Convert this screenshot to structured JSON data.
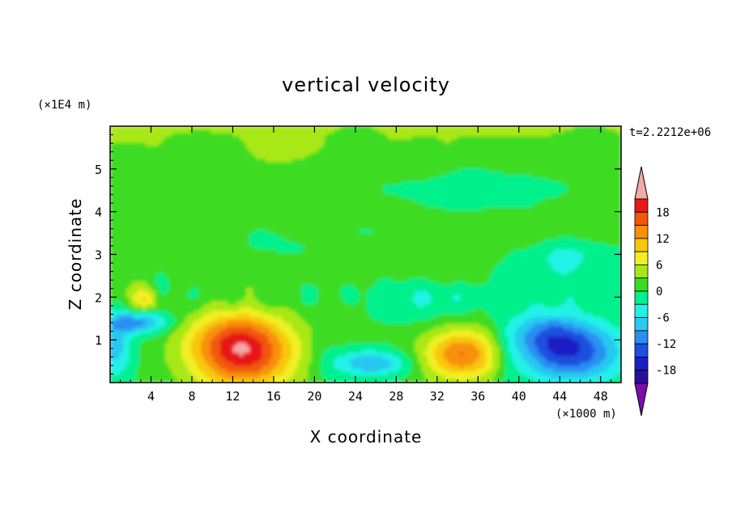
{
  "chart_data": {
    "type": "heatmap",
    "title": "vertical velocity",
    "xlabel": "X coordinate",
    "ylabel": "Z coordinate",
    "x_scale_label": "(×1000 m)",
    "y_scale_label": "(×1E4 m)",
    "time_label": "t=2.2212e+06",
    "xlim": [
      0,
      50
    ],
    "ylim": [
      0,
      6
    ],
    "x_ticks": [
      4,
      8,
      12,
      16,
      20,
      24,
      28,
      32,
      36,
      40,
      44,
      48
    ],
    "y_ticks": [
      1,
      2,
      3,
      4,
      5
    ],
    "colorbar": {
      "ticks": [
        18,
        12,
        6,
        0,
        -6,
        -12,
        -18
      ],
      "levels": [
        -21,
        -18,
        -15,
        -12,
        -9,
        -6,
        -3,
        0,
        3,
        6,
        9,
        12,
        15,
        18,
        21
      ],
      "colors": [
        "#7a10a8",
        "#2a0f9a",
        "#1a1fc4",
        "#1d4fe0",
        "#2a8ef2",
        "#28c8f0",
        "#20f2e6",
        "#00f08c",
        "#3cdc20",
        "#a8e818",
        "#f0f020",
        "#f8c808",
        "#f89008",
        "#f05808",
        "#e81818",
        "#f4a8a8"
      ],
      "extend": "both"
    },
    "features": [
      {
        "name": "updraft",
        "x": 13,
        "z": 0.7,
        "w": 18
      },
      {
        "name": "updraft",
        "x": 34.5,
        "z": 0.65,
        "w": 13
      },
      {
        "name": "updraft",
        "x": 3.5,
        "z": 1.95,
        "w": 8
      },
      {
        "name": "downdraft",
        "x": 45,
        "z": 0.7,
        "w": -15
      },
      {
        "name": "downdraft",
        "x": 2.5,
        "z": 1.4,
        "w": -11
      },
      {
        "name": "downdraft",
        "x": 25.5,
        "z": 0.45,
        "w": -9
      }
    ],
    "grid": false
  }
}
